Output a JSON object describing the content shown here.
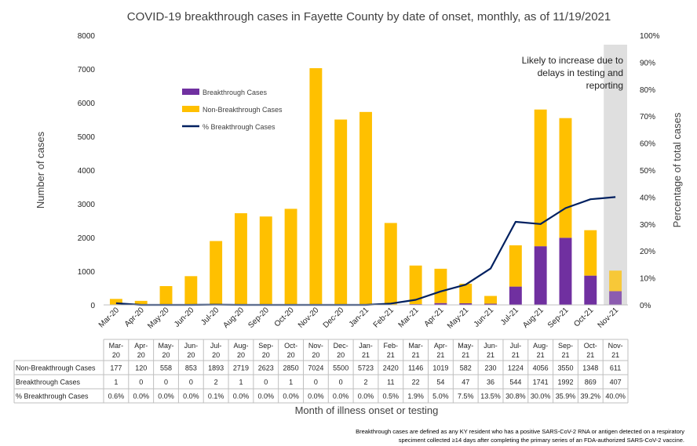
{
  "chart_data": {
    "type": "bar",
    "title": "COVID-19 breakthrough cases in Fayette County by date of onset, monthly, as of 11/19/2021",
    "xlabel": "Month of illness onset or testing",
    "ylabel": "Number of cases",
    "y2label": "Percentage of total cases",
    "ylim": [
      0,
      8000
    ],
    "y_ticks": [
      "0",
      "1000",
      "2000",
      "3000",
      "4000",
      "5000",
      "6000",
      "7000",
      "8000"
    ],
    "y2lim": [
      0,
      100
    ],
    "y2_ticks": [
      "0%",
      "10%",
      "20%",
      "30%",
      "40%",
      "50%",
      "60%",
      "70%",
      "80%",
      "90%",
      "100%"
    ],
    "stacked": true,
    "grid": false,
    "legend_position": "upper-left inside plot",
    "categories": [
      "Mar-20",
      "Apr-20",
      "May-20",
      "Jun-20",
      "Jul-20",
      "Aug-20",
      "Sep-20",
      "Oct-20",
      "Nov-20",
      "Dec-20",
      "Jan-21",
      "Feb-21",
      "Mar-21",
      "Apr-21",
      "May-21",
      "Jun-21",
      "Jul-21",
      "Aug-21",
      "Sep-21",
      "Oct-21",
      "Nov-21"
    ],
    "series": [
      {
        "name": "Breakthrough Cases",
        "kind": "bar",
        "axis": "left",
        "color": "#7030a0",
        "values": [
          1,
          0,
          0,
          0,
          2,
          1,
          0,
          1,
          0,
          0,
          2,
          11,
          22,
          54,
          47,
          36,
          544,
          1741,
          1992,
          869,
          407
        ]
      },
      {
        "name": "Non-Breakthrough Cases",
        "kind": "bar",
        "axis": "left",
        "color": "#ffc000",
        "values": [
          177,
          120,
          558,
          853,
          1893,
          2719,
          2623,
          2850,
          7024,
          5500,
          5723,
          2420,
          1146,
          1019,
          582,
          230,
          1224,
          4056,
          3550,
          1348,
          611
        ]
      },
      {
        "name": "% Breakthrough Cases",
        "kind": "line",
        "axis": "right",
        "color": "#002060",
        "values": [
          0.6,
          0.0,
          0.0,
          0.0,
          0.1,
          0.0,
          0.0,
          0.0,
          0.0,
          0.0,
          0.0,
          0.5,
          1.9,
          5.0,
          7.5,
          13.5,
          30.8,
          30.0,
          35.9,
          39.2,
          40.0
        ]
      }
    ],
    "table": {
      "rows": [
        {
          "label": "Non-Breakthrough Cases",
          "cells": [
            "177",
            "120",
            "558",
            "853",
            "1893",
            "2719",
            "2623",
            "2850",
            "7024",
            "5500",
            "5723",
            "2420",
            "1146",
            "1019",
            "582",
            "230",
            "1224",
            "4056",
            "3550",
            "1348",
            "611"
          ]
        },
        {
          "label": "Breakthrough Cases",
          "cells": [
            "1",
            "0",
            "0",
            "0",
            "2",
            "1",
            "0",
            "1",
            "0",
            "0",
            "2",
            "11",
            "22",
            "54",
            "47",
            "36",
            "544",
            "1741",
            "1992",
            "869",
            "407"
          ]
        },
        {
          "label": "% Breakthrough Cases",
          "cells": [
            "0.6%",
            "0.0%",
            "0.0%",
            "0.0%",
            "0.1%",
            "0.0%",
            "0.0%",
            "0.0%",
            "0.0%",
            "0.0%",
            "0.0%",
            "0.5%",
            "1.9%",
            "5.0%",
            "7.5%",
            "13.5%",
            "30.8%",
            "30.0%",
            "35.9%",
            "39.2%",
            "40.0%"
          ]
        }
      ]
    },
    "annotation": [
      "Likely to increase due to",
      "delays in testing and",
      "reporting"
    ],
    "shaded_category": "Nov-21",
    "shade_color": "#d9d9d9",
    "footnote": [
      "Breakthrough cases are defined as any KY resident who has a positive SARS-CoV-2 RNA or antigen detected on a respiratory",
      "speciment collected ≥14 days after completing the primary series of an FDA-authorized SARS-CoV-2 vaccine."
    ]
  }
}
